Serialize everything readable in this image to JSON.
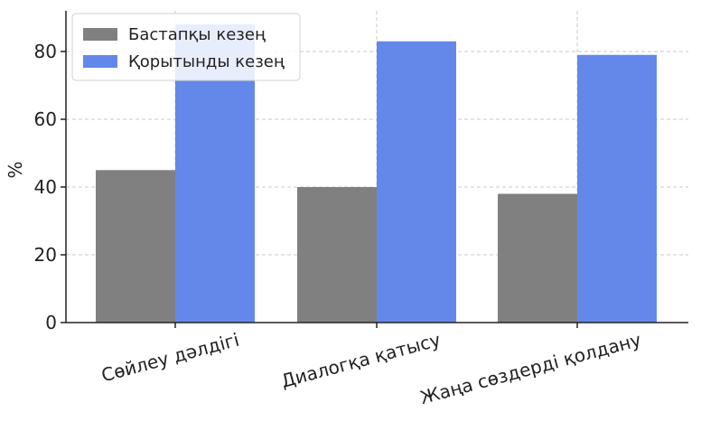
{
  "chart_data": {
    "type": "bar",
    "categories": [
      "Сөйлеу дәлдігі",
      "Диалогқа қатысу",
      "Жаңа сөздерді қолдану"
    ],
    "series": [
      {
        "name": "Бастапқы кезең",
        "values": [
          45,
          40,
          38
        ],
        "color": "#808080"
      },
      {
        "name": "Қорытынды кезең",
        "values": [
          88,
          83,
          79
        ],
        "color": "#6488ea"
      }
    ],
    "title": "",
    "xlabel": "",
    "ylabel": "%",
    "ylim": [
      0,
      92
    ],
    "yticks": [
      0,
      20,
      40,
      60,
      80
    ],
    "grid": true,
    "legend": "top-left"
  }
}
